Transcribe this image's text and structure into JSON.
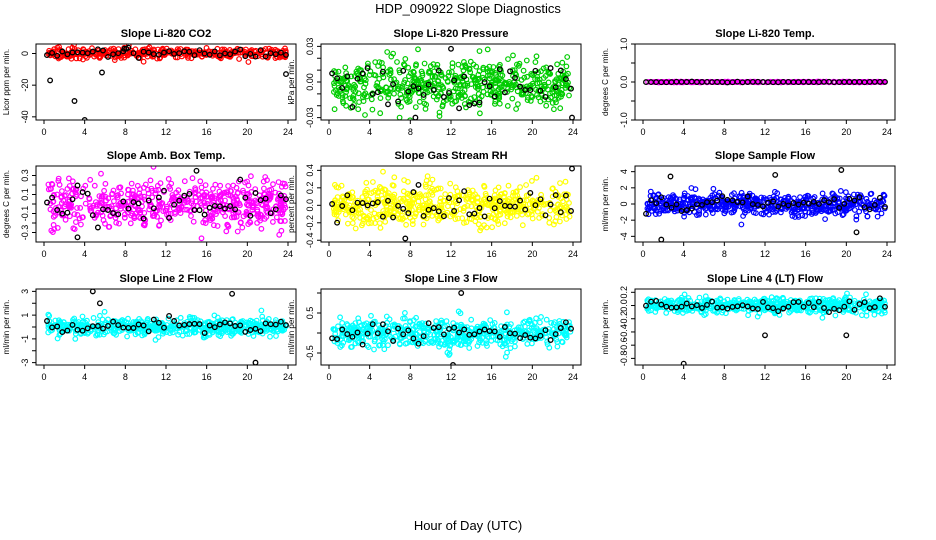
{
  "title": "HDP_090922  Slope Diagnostics",
  "xlabel": "Hour of Day (UTC)",
  "chart_data": [
    {
      "type": "scatter",
      "title": "Slope Li-820 CO2",
      "ylabel": "Licor ppm per min.",
      "xlim": [
        0,
        24
      ],
      "xticks": [
        0,
        4,
        8,
        12,
        16,
        20,
        24
      ],
      "ylim": [
        -42,
        6
      ],
      "yticks": [
        -40,
        -20,
        0
      ],
      "ytick_labels": [
        "-40",
        "-20",
        "0"
      ],
      "point_color": "#ff0000",
      "n_points": 360,
      "spread": 1.6,
      "center": 0.2,
      "outliers": [
        [
          0.6,
          -17
        ],
        [
          3.0,
          -30
        ],
        [
          4.0,
          -42
        ],
        [
          5.7,
          -12
        ],
        [
          7.9,
          3
        ],
        [
          8.1,
          3
        ],
        [
          23.8,
          -13
        ]
      ]
    },
    {
      "type": "scatter",
      "title": "Slope Li-820 Pressure",
      "ylabel": "kPa per min.",
      "xlim": [
        0,
        24
      ],
      "xticks": [
        0,
        4,
        8,
        12,
        16,
        20,
        24
      ],
      "ylim": [
        -0.032,
        0.032
      ],
      "yticks": [
        -0.03,
        -0.02,
        -0.01,
        0.0,
        0.01,
        0.02,
        0.03
      ],
      "ytick_labels": [
        "-0.03",
        "",
        "",
        "0.00",
        "",
        "",
        "0.03"
      ],
      "point_color": "#00cc00",
      "n_points": 560,
      "spread": 0.011,
      "center": -0.002,
      "outliers": [
        [
          23.9,
          -0.03
        ],
        [
          8.5,
          -0.03
        ],
        [
          12.0,
          0.028
        ]
      ]
    },
    {
      "type": "scatter",
      "title": "Slope Li-820 Temp.",
      "ylabel": "degrees C per min.",
      "xlim": [
        0,
        24
      ],
      "xticks": [
        0,
        4,
        8,
        12,
        16,
        20,
        24
      ],
      "ylim": [
        -1.0,
        1.0
      ],
      "yticks": [
        -1.0,
        -0.5,
        0.0,
        0.5,
        1.0
      ],
      "ytick_labels": [
        "-1.0",
        "",
        "0.0",
        "",
        "1.0"
      ],
      "point_color": "#ff00ff",
      "n_points": 300,
      "spread": 0.005,
      "center": 0.0,
      "outliers": []
    },
    {
      "type": "scatter",
      "title": "Slope Amb. Box Temp.",
      "ylabel": "degrees C per min.",
      "xlim": [
        0,
        24
      ],
      "xticks": [
        0,
        4,
        8,
        12,
        16,
        20,
        24
      ],
      "ylim": [
        -0.4,
        0.4
      ],
      "yticks": [
        -0.3,
        -0.2,
        -0.1,
        0.0,
        0.1,
        0.2,
        0.3
      ],
      "ytick_labels": [
        "-0.3",
        "",
        "-0.1",
        "",
        "0.1",
        "",
        "0.3"
      ],
      "point_color": "#ff00ff",
      "n_points": 560,
      "spread": 0.12,
      "center": 0.0,
      "outliers": [
        [
          3.3,
          -0.35
        ],
        [
          15.0,
          0.35
        ]
      ]
    },
    {
      "type": "scatter",
      "title": "Slope Gas Stream RH",
      "ylabel": "percent per min.",
      "xlim": [
        0,
        24
      ],
      "xticks": [
        0,
        4,
        8,
        12,
        16,
        20,
        24
      ],
      "ylim": [
        -0.42,
        0.45
      ],
      "yticks": [
        -0.4,
        -0.2,
        0.0,
        0.2,
        0.4
      ],
      "ytick_labels": [
        "-0.4",
        "-0.2",
        "0.0",
        "0.2",
        "0.4"
      ],
      "point_color": "#ffff00",
      "n_points": 560,
      "spread": 0.12,
      "center": 0.0,
      "outliers": [
        [
          23.9,
          0.42
        ],
        [
          7.5,
          -0.38
        ]
      ]
    },
    {
      "type": "scatter",
      "title": "Slope Sample Flow",
      "ylabel": "ml/min per min.",
      "xlim": [
        0,
        24
      ],
      "xticks": [
        0,
        4,
        8,
        12,
        16,
        20,
        24
      ],
      "ylim": [
        -4.7,
        4.7
      ],
      "yticks": [
        -4,
        -2,
        0,
        2,
        4
      ],
      "ytick_labels": [
        "-4",
        "-2",
        "0",
        "2",
        "4"
      ],
      "point_color": "#0000ff",
      "n_points": 540,
      "spread": 0.7,
      "center": 0.0,
      "outliers": [
        [
          1.8,
          -4.4
        ],
        [
          2.7,
          3.4
        ],
        [
          13.0,
          3.6
        ],
        [
          19.5,
          4.2
        ],
        [
          21.0,
          -3.5
        ]
      ]
    },
    {
      "type": "scatter",
      "title": "Slope Line 2 Flow",
      "ylabel": "ml/min per min.",
      "xlim": [
        0,
        24
      ],
      "xticks": [
        0,
        4,
        8,
        12,
        16,
        20,
        24
      ],
      "ylim": [
        -3.2,
        3.2
      ],
      "yticks": [
        -3,
        -2,
        -1,
        0,
        1,
        2,
        3
      ],
      "ytick_labels": [
        "-3",
        "",
        "-1",
        "",
        "1",
        "",
        "3"
      ],
      "point_color": "#00ffff",
      "n_points": 540,
      "spread": 0.35,
      "center": 0.0,
      "outliers": [
        [
          4.8,
          3.0
        ],
        [
          18.5,
          2.8
        ],
        [
          20.8,
          -3.0
        ],
        [
          5.5,
          2.0
        ]
      ]
    },
    {
      "type": "scatter",
      "title": "Slope Line 3 Flow",
      "ylabel": "ml/min per min.",
      "xlim": [
        0,
        24
      ],
      "xticks": [
        0,
        4,
        8,
        12,
        16,
        20,
        24
      ],
      "ylim": [
        -0.8,
        1.1
      ],
      "yticks": [
        -0.5,
        0.0,
        0.5,
        1.0
      ],
      "ytick_labels": [
        "-0.5",
        "",
        "0.5",
        ""
      ],
      "point_color": "#00ffff",
      "n_points": 560,
      "spread": 0.18,
      "center": 0.0,
      "outliers": [
        [
          13.0,
          1.0
        ],
        [
          12.2,
          -0.8
        ]
      ]
    },
    {
      "type": "scatter",
      "title": "Slope Line 4 (LT) Flow",
      "ylabel": "ml/min per min.",
      "xlim": [
        0,
        24
      ],
      "xticks": [
        0,
        4,
        8,
        12,
        16,
        20,
        24
      ],
      "ylim": [
        -0.9,
        0.25
      ],
      "yticks": [
        -0.8,
        -0.6,
        -0.4,
        -0.2,
        0.0,
        0.2
      ],
      "ytick_labels": [
        "-0.8",
        "-0.6",
        "-0.4",
        "-0.2",
        "0.0",
        "0.2"
      ],
      "point_color": "#00ffff",
      "n_points": 560,
      "spread": 0.06,
      "center": 0.0,
      "outliers": [
        [
          4.0,
          -0.88
        ],
        [
          12.0,
          -0.45
        ],
        [
          20.0,
          -0.45
        ]
      ]
    }
  ]
}
